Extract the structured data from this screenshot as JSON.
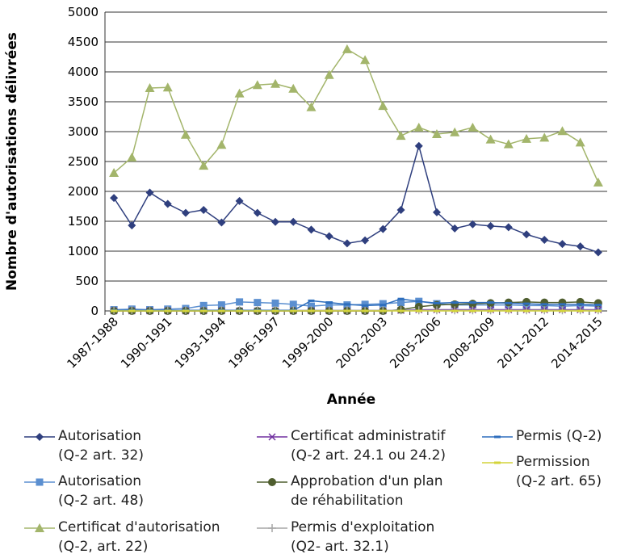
{
  "chart_data": {
    "type": "line",
    "xlabel": "Année",
    "ylabel": "Nombre d'autorisations délivrées",
    "categories": [
      "1987-1988",
      null,
      null,
      "1990-1991",
      null,
      null,
      "1993-1994",
      null,
      null,
      "1996-1997",
      null,
      null,
      "1999-2000",
      null,
      null,
      "2002-2003",
      null,
      null,
      "2005-2006",
      null,
      null,
      "2008-2009",
      null,
      null,
      "2011-2012",
      null,
      null,
      "2014-2015"
    ],
    "ylim": [
      0,
      5000
    ],
    "yticks": [
      0,
      500,
      1000,
      1500,
      2000,
      2500,
      3000,
      3500,
      4000,
      4500,
      5000
    ],
    "grid": true,
    "series": [
      {
        "name": "Autorisation\n(Q-2 art. 32)",
        "color": "#2f3f7e",
        "marker": "diamond",
        "values": [
          1890,
          1430,
          1980,
          1790,
          1640,
          1690,
          1480,
          1840,
          1640,
          1490,
          1490,
          1360,
          1250,
          1130,
          1180,
          1370,
          1690,
          2760,
          1650,
          1380,
          1450,
          1420,
          1400,
          1280,
          1190,
          1120,
          1080,
          980
        ]
      },
      {
        "name": "Autorisation\n(Q-2 art. 48)",
        "color": "#5b8fd0",
        "marker": "square",
        "values": [
          20,
          30,
          20,
          30,
          40,
          90,
          100,
          150,
          140,
          130,
          110,
          80,
          100,
          100,
          110,
          120,
          140,
          160,
          120,
          100,
          100,
          100,
          100,
          90,
          90,
          80,
          90,
          80
        ]
      },
      {
        "name": "Certificat d'autorisation\n(Q-2, art. 22)",
        "color": "#a3b56b",
        "marker": "triangle",
        "values": [
          2310,
          2570,
          3730,
          3740,
          2950,
          2430,
          2780,
          3640,
          3780,
          3800,
          3720,
          3410,
          3950,
          4380,
          4200,
          3430,
          2930,
          3070,
          2960,
          2990,
          3070,
          2870,
          2790,
          2880,
          2900,
          3010,
          2820,
          2150
        ]
      },
      {
        "name": "Certificat administratif\n(Q-2 art. 24.1 ou 24.2)",
        "color": "#7030a0",
        "marker": "x",
        "values": [
          0,
          0,
          0,
          0,
          0,
          0,
          0,
          0,
          0,
          0,
          0,
          0,
          0,
          0,
          0,
          0,
          10,
          20,
          20,
          20,
          20,
          20,
          20,
          20,
          20,
          20,
          20,
          20
        ]
      },
      {
        "name": "Approbation d'un plan\nde réhabilitation",
        "color": "#4f5e2f",
        "marker": "circle",
        "values": [
          0,
          0,
          0,
          0,
          0,
          0,
          0,
          0,
          0,
          0,
          0,
          0,
          0,
          0,
          0,
          0,
          20,
          70,
          100,
          110,
          120,
          130,
          140,
          150,
          140,
          140,
          150,
          130
        ]
      },
      {
        "name": "Permis d'exploitation\n(Q2- art. 32.1)",
        "color": "#a6a6a6",
        "marker": "plus",
        "values": [
          10,
          10,
          10,
          10,
          10,
          10,
          10,
          10,
          10,
          10,
          10,
          10,
          10,
          10,
          10,
          10,
          10,
          10,
          10,
          10,
          10,
          10,
          10,
          10,
          10,
          10,
          10,
          10
        ]
      },
      {
        "name": "Permis (Q-2)",
        "color": "#2e6ebd",
        "marker": "dash",
        "values": [
          10,
          10,
          10,
          10,
          10,
          10,
          10,
          10,
          10,
          10,
          10,
          170,
          140,
          110,
          90,
          100,
          200,
          160,
          130,
          140,
          140,
          140,
          130,
          120,
          110,
          110,
          110,
          100
        ]
      },
      {
        "name": "Permission\n(Q-2 art. 65)",
        "color": "#d4d43a",
        "marker": "dash",
        "values": [
          0,
          0,
          0,
          0,
          0,
          0,
          0,
          0,
          0,
          0,
          0,
          0,
          0,
          0,
          0,
          0,
          0,
          0,
          0,
          0,
          0,
          0,
          0,
          0,
          0,
          0,
          0,
          0
        ]
      }
    ]
  }
}
